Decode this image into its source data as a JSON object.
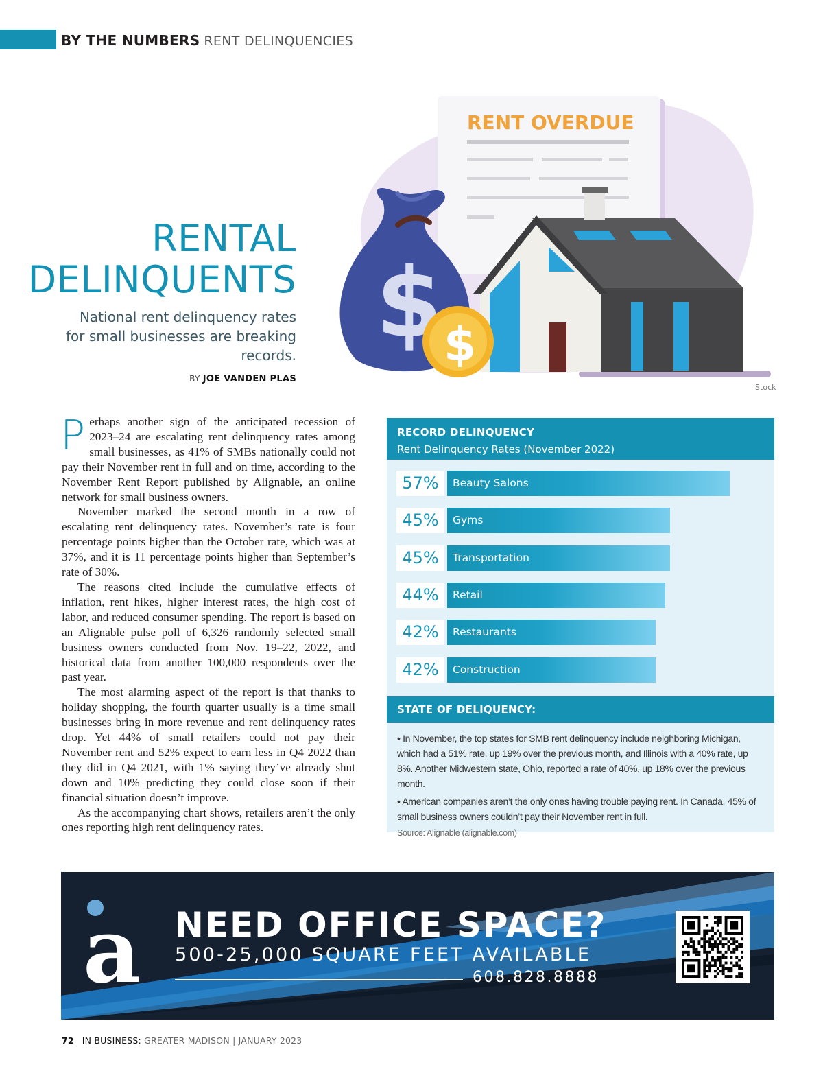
{
  "header": {
    "section": "BY THE NUMBERS",
    "topic": "RENT DELINQUENCIES"
  },
  "headline": {
    "line1": "RENTAL",
    "line2": "DELINQUENTS",
    "subhead": "National rent delinquency rates for small businesses are breaking records.",
    "byline_prefix": "BY",
    "author": "JOE VANDEN PLAS"
  },
  "illustration": {
    "document_title": "RENT OVERDUE",
    "credit": "iStock",
    "colors": {
      "bag": "#3e4f9e",
      "coin": "#f3b42a",
      "title": "#f0a23b",
      "roof": "#4a4a4c",
      "glass": "#2ba3d8"
    }
  },
  "article": {
    "dropcap": "P",
    "paragraphs": [
      "erhaps another sign of the anticipated recession of 2023–24 are escalating rent delinquency rates among small businesses, as 41% of SMBs nationally could not pay their November rent in full and on time, according to the November Rent Report published by Alignable, an online network for small business owners.",
      "November marked the second month in a row of escalating rent delinquency rates. November’s rate is four percentage points higher than the October rate, which was at 37%, and it is 11 percentage points higher than September’s rate of 30%.",
      "The reasons cited include the cumulative effects of inflation, rent hikes, higher interest rates, the high cost of labor, and reduced consumer spending. The report is based on an Alignable pulse poll of 6,326 randomly selected small business owners conducted from Nov. 19–22, 2022, and historical data from another 100,000 respondents over the past year.",
      "The most alarming aspect of the report is that thanks to holiday shopping, the fourth quarter usually is a time small businesses bring in more revenue and rent delinquency rates drop. Yet 44% of small retailers could not pay their November rent and 52% expect to earn less in Q4 2022 than they did in Q4 2021, with 1% saying they’ve already shut down and 10% predicting they could close soon if their financial situation doesn’t improve.",
      "As the accompanying chart shows, retailers aren’t the only ones reporting high rent delinquency rates."
    ]
  },
  "chart_panel": {
    "title": "RECORD DELINQUENCY",
    "subtitle": "Rent Delinquency Rates (November 2022)",
    "state_title": "STATE OF DELIQUENCY:",
    "notes": [
      "• In November, the top states for SMB rent delinquency include neighboring Michigan, which had a 51% rate, up 19% over the previous month, and Illinois with a 40% rate, up 8%. Another Midwestern state, Ohio, reported a rate of 40%, up 18% over the previous month.",
      "• American companies aren’t the only ones having trouble paying rent. In Canada, 45% of small business owners couldn’t pay their November rent in full."
    ],
    "source": "Source: Alignable (alignable.com)"
  },
  "chart_data": {
    "type": "bar",
    "orientation": "horizontal",
    "title": "RECORD DELINQUENCY",
    "subtitle": "Rent Delinquency Rates (November 2022)",
    "categories": [
      "Beauty Salons",
      "Gyms",
      "Transportation",
      "Retail",
      "Restaurants",
      "Construction"
    ],
    "values": [
      57,
      45,
      45,
      44,
      42,
      42
    ],
    "value_labels": [
      "57%",
      "45%",
      "45%",
      "44%",
      "42%",
      "42%"
    ],
    "unit": "%",
    "bar_color": "#1592b3",
    "grid": false
  },
  "ad": {
    "headline": "NEED OFFICE SPACE?",
    "subline": "500-25,000 SQUARE FEET AVAILABLE",
    "phone": "608.828.8888",
    "logo_letter": "a",
    "colors": {
      "background": "#152131",
      "stripe": "#1a6fb5",
      "logo": "#ffffff"
    }
  },
  "footer": {
    "page_number": "72",
    "publication": "IN BUSINESS:",
    "edition": "GREATER MADISON | JANUARY 2023"
  }
}
